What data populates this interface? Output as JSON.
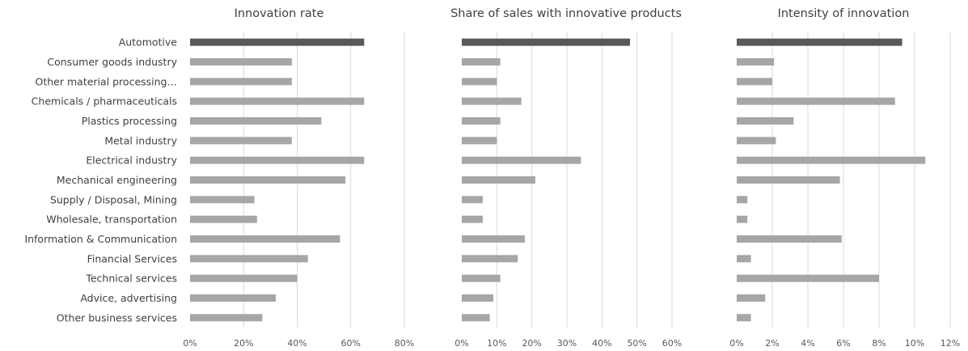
{
  "chart_data": {
    "type": "bar",
    "orientation": "horizontal",
    "categories": [
      "Automotive",
      "Consumer goods industry",
      "Other material processing…",
      "Chemicals / pharmaceuticals",
      "Plastics processing",
      "Metal industry",
      "Electrical industry",
      "Mechanical engineering",
      "Supply / Disposal, Mining",
      "Wholesale, transportation",
      "Information & Communication",
      "Financial Services",
      "Technical services",
      "Advice, advertising",
      "Other business services"
    ],
    "highlight_color": "#595959",
    "bar_color": "#a6a6a6",
    "grid": true,
    "panels": [
      {
        "title": "Innovation rate",
        "xlim": [
          0,
          80
        ],
        "ticks": [
          0,
          20,
          40,
          60,
          80
        ],
        "tick_labels": [
          "0%",
          "20%",
          "40%",
          "60%",
          "80%"
        ],
        "values": [
          65,
          38,
          38,
          65,
          49,
          38,
          65,
          58,
          24,
          25,
          56,
          44,
          40,
          32,
          27
        ]
      },
      {
        "title": "Share of sales with innovative products",
        "xlim": [
          0,
          60
        ],
        "ticks": [
          0,
          10,
          20,
          30,
          40,
          50,
          60
        ],
        "tick_labels": [
          "0%",
          "10%",
          "20%",
          "30%",
          "40%",
          "50%",
          "60%"
        ],
        "values": [
          48,
          11,
          10,
          17,
          11,
          10,
          34,
          21,
          6,
          6,
          18,
          16,
          11,
          9,
          8
        ]
      },
      {
        "title": "Intensity of innovation",
        "xlim": [
          0,
          12
        ],
        "ticks": [
          0,
          2,
          4,
          6,
          8,
          10,
          12
        ],
        "tick_labels": [
          "0%",
          "2%",
          "4%",
          "6%",
          "8%",
          "10%",
          "12%"
        ],
        "values": [
          9.3,
          2.1,
          2.0,
          8.9,
          3.2,
          2.2,
          10.6,
          5.8,
          0.6,
          0.6,
          5.9,
          0.8,
          8.0,
          1.6,
          0.8
        ]
      }
    ]
  }
}
